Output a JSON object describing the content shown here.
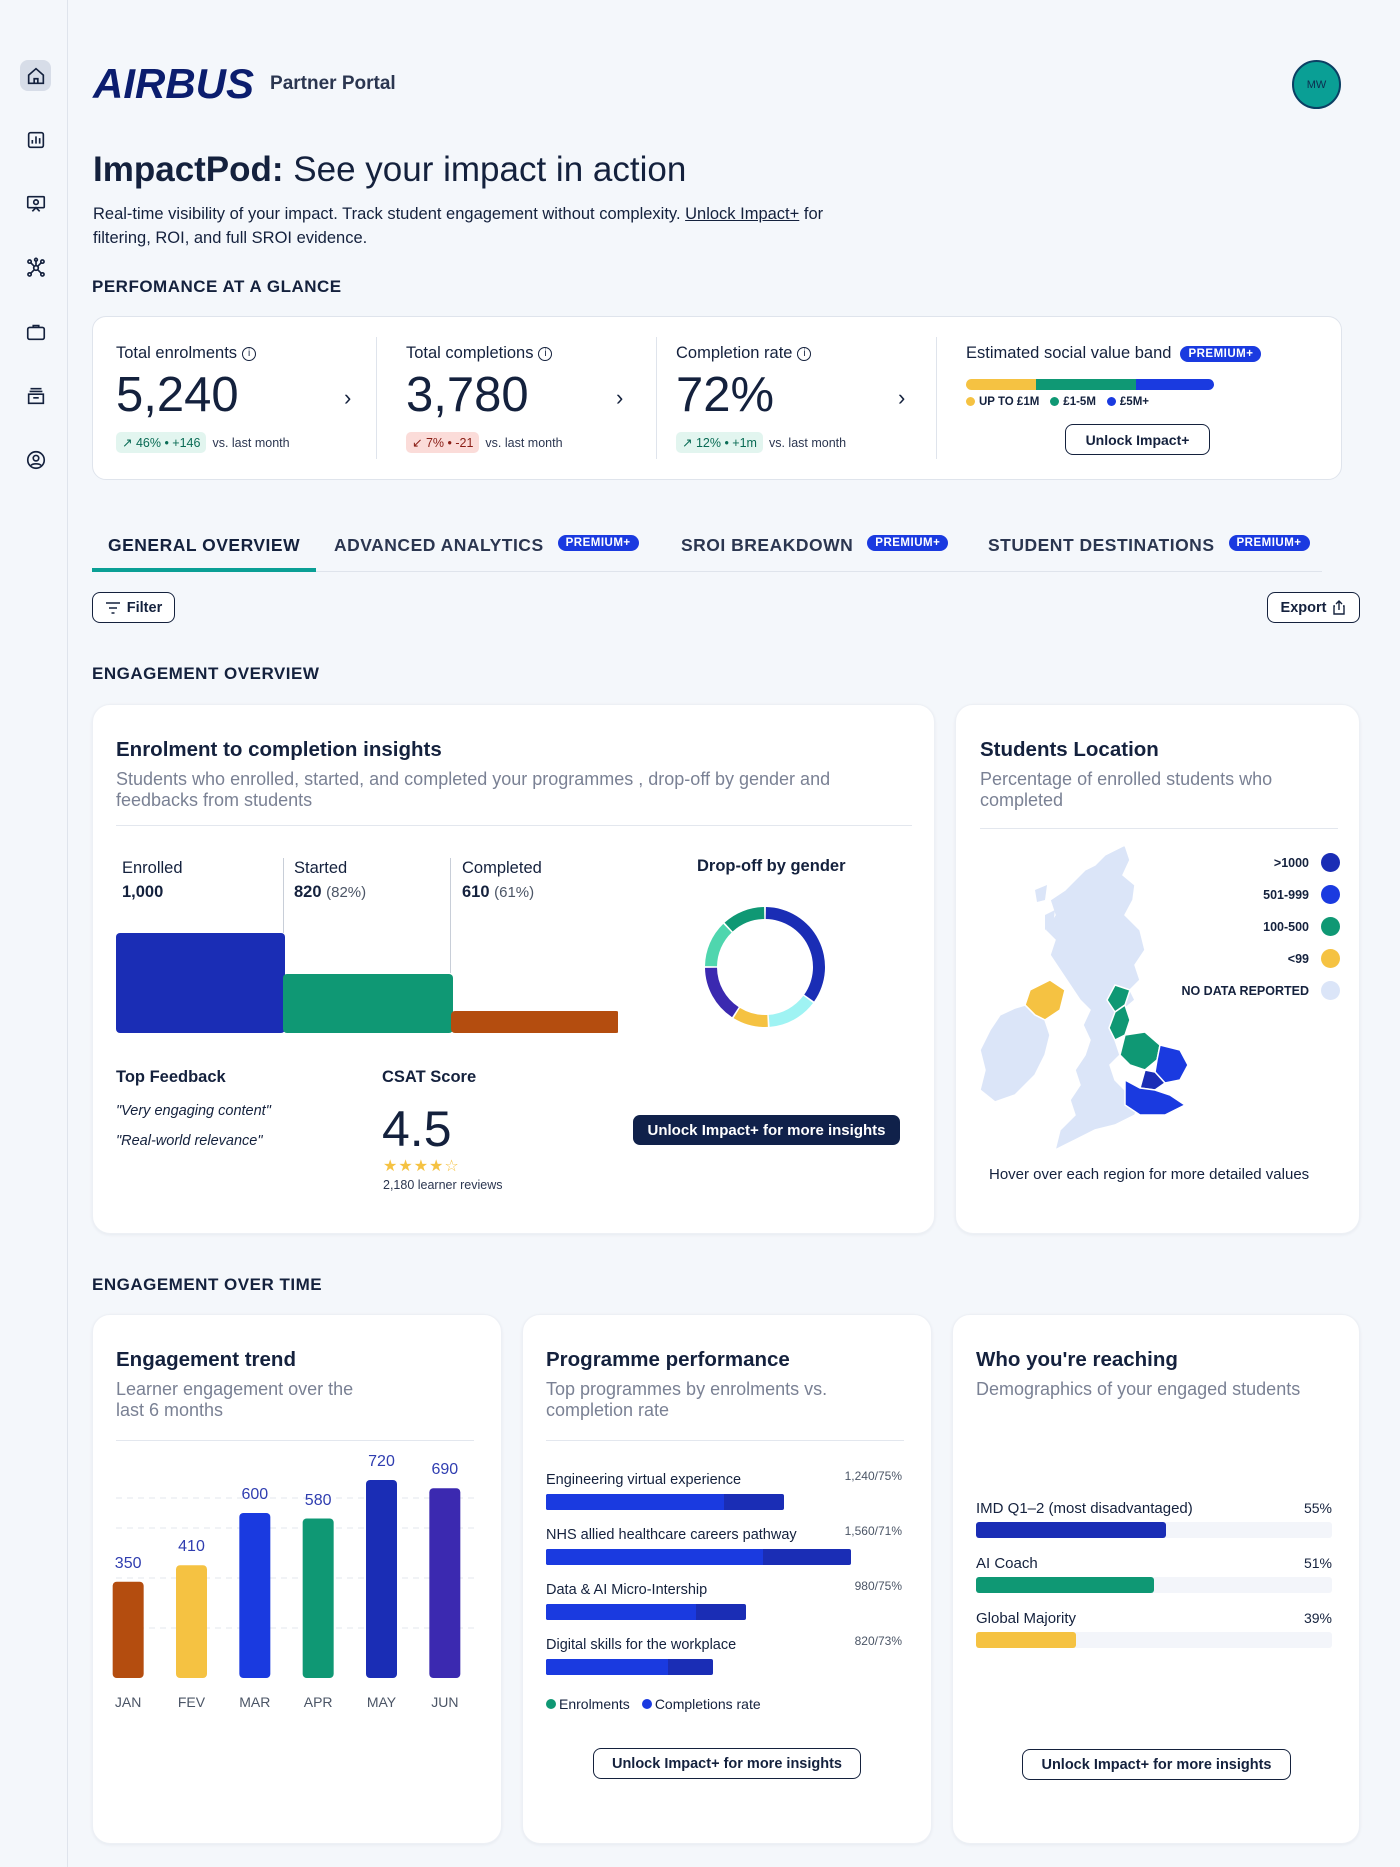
{
  "header": {
    "logo_text": "AIRBUS",
    "portal": "Partner Portal",
    "avatar_initials": "MW"
  },
  "sidebar": {
    "items": [
      {
        "icon": "home-icon",
        "active": true
      },
      {
        "icon": "bar-chart-icon"
      },
      {
        "icon": "presentation-icon"
      },
      {
        "icon": "network-icon"
      },
      {
        "icon": "briefcase-icon"
      },
      {
        "icon": "archive-icon"
      },
      {
        "icon": "user-circle-icon"
      }
    ]
  },
  "hero": {
    "title_bold": "ImpactPod:",
    "title_rest": " See your impact in action",
    "desc_start": "Real-time visibility of your impact. Track student engagement without complexity. ",
    "desc_link": "Unlock Impact+",
    "desc_end": " for filtering, ROI, and full SROI evidence."
  },
  "performance": {
    "section_label": "PERFOMANCE AT A GLANCE",
    "kpis": [
      {
        "label": "Total enrolments",
        "value": "5,240",
        "delta": "46% • +146",
        "note": "vs. last month",
        "direction": "up"
      },
      {
        "label": "Total completions",
        "value": "3,780",
        "delta": "7% • -21",
        "note": "vs. last month",
        "direction": "down"
      },
      {
        "label": "Completion rate",
        "value": "72%",
        "delta": "12% • +1m",
        "note": "vs. last month",
        "direction": "up"
      }
    ],
    "social_value": {
      "label": "Estimated social value band",
      "badge": "PREMIUM+",
      "legend": [
        {
          "label": "UP TO £1M",
          "color": "#f5c242"
        },
        {
          "label": "£1-5M",
          "color": "#0f9874"
        },
        {
          "label": "£5M+",
          "color": "#1a3ae0"
        }
      ],
      "button": "Unlock Impact+"
    }
  },
  "tabs": [
    {
      "label": "GENERAL OVERVIEW",
      "badge": ""
    },
    {
      "label": "ADVANCED ANALYTICS",
      "badge": "PREMIUM+"
    },
    {
      "label": "SROI BREAKDOWN",
      "badge": "PREMIUM+"
    },
    {
      "label": "STUDENT DESTINATIONS",
      "badge": "PREMIUM+"
    }
  ],
  "toolbar": {
    "filter": "Filter",
    "export": "Export"
  },
  "engagement_overview": {
    "section_label": "ENGAGEMENT OVERVIEW",
    "insights": {
      "title": "Enrolment to completion insights",
      "subtitle": "Students who enrolled, started, and completed your programmes , drop-off by gender and feedbacks from students",
      "funnel": [
        {
          "label": "Enrolled",
          "value": "1,000",
          "pct": "",
          "count": 1000,
          "color": "#1a2db5"
        },
        {
          "label": "Started",
          "value": "820",
          "pct": "(82%)",
          "count": 820,
          "color": "#0f9874"
        },
        {
          "label": "Completed",
          "value": "610",
          "pct": "(61%)",
          "count": 610,
          "color": "#b44d0f"
        }
      ],
      "dropoff_title": "Drop-off by gender",
      "donut": [
        {
          "value": 35,
          "color": "#1a2db5"
        },
        {
          "value": 14,
          "color": "#9ff3f3"
        },
        {
          "value": 10,
          "color": "#f5c242"
        },
        {
          "value": 16,
          "color": "#3b29b0"
        },
        {
          "value": 13,
          "color": "#4fd6ae"
        },
        {
          "value": 12,
          "color": "#0f9874"
        }
      ],
      "feedback_title": "Top Feedback",
      "feedback": [
        "\"Very engaging content\"",
        "\"Real-world relevance\""
      ],
      "csat_title": "CSAT Score",
      "csat_value": "4.5",
      "stars": "★★★★☆",
      "reviews": "2,180 learner reviews",
      "cta": "Unlock Impact+ for more insights"
    },
    "location": {
      "title": "Students Location",
      "subtitle": "Percentage of enrolled students who completed",
      "legend": [
        {
          "label": ">1000",
          "color": "#1a2db5"
        },
        {
          "label": "501-999",
          "color": "#1a3ae0"
        },
        {
          "label": "100-500",
          "color": "#0f9874"
        },
        {
          "label": "<99",
          "color": "#f5c242"
        },
        {
          "label": "NO DATA REPORTED",
          "color": "#dbe5f8"
        }
      ],
      "hint": "Hover over each region for more detailed values"
    }
  },
  "engagement_over_time": {
    "section_label": "ENGAGEMENT OVER TIME",
    "trend": {
      "title": "Engagement trend",
      "subtitle": "Learner engagement over the last 6 months"
    },
    "programmes": {
      "title": "Programme performance",
      "subtitle": "Top programmes by enrolments vs. completion rate",
      "items": [
        {
          "label": "Engineering virtual experience",
          "stat": "1,240/75%",
          "enrolments": 1240,
          "rate": 75
        },
        {
          "label": "NHS allied healthcare careers pathway",
          "stat": "1,560/71%",
          "enrolments": 1560,
          "rate": 71
        },
        {
          "label": "Data & AI Micro-Intership",
          "stat": "980/75%",
          "enrolments": 980,
          "rate": 75
        },
        {
          "label": "Digital skills for the workplace",
          "stat": "820/73%",
          "enrolments": 820,
          "rate": 73
        }
      ],
      "legend": [
        {
          "label": "Enrolments",
          "color": "#0f9874"
        },
        {
          "label": "Completions rate",
          "color": "#1a3ae0"
        }
      ],
      "cta": "Unlock Impact+ for more insights"
    },
    "reach": {
      "title": "Who you're reaching",
      "subtitle": "Demographics of your engaged students",
      "items": [
        {
          "label": "IMD Q1–2 (most disadvantaged)",
          "pct": "55%",
          "value": 55,
          "color": "#1a2db5"
        },
        {
          "label": "AI Coach",
          "pct": "51%",
          "value": 51,
          "color": "#0f9874"
        },
        {
          "label": "Global Majority",
          "pct": "39%",
          "value": 39,
          "color": "#f5c242"
        }
      ],
      "cta": "Unlock Impact+ for more insights"
    }
  },
  "chart_data": {
    "type": "bar",
    "categories": [
      "JAN",
      "FEV",
      "MAR",
      "APR",
      "MAY",
      "JUN"
    ],
    "values": [
      350,
      410,
      600,
      580,
      720,
      690
    ],
    "colors": [
      "#b44d0f",
      "#f5c242",
      "#1a3ae0",
      "#0f9874",
      "#1a2db5",
      "#3b29b0"
    ],
    "title": "Engagement trend",
    "xlabel": "",
    "ylabel": "",
    "ylim": [
      0,
      800
    ],
    "grid": true
  }
}
